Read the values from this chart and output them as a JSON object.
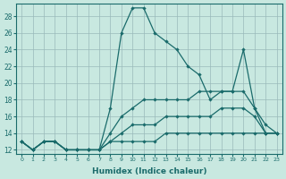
{
  "xlabel": "Humidex (Indice chaleur)",
  "xlim": [
    -0.5,
    23.5
  ],
  "ylim": [
    11.5,
    29.5
  ],
  "yticks": [
    12,
    14,
    16,
    18,
    20,
    22,
    24,
    26,
    28
  ],
  "xticks": [
    0,
    1,
    2,
    3,
    4,
    5,
    6,
    7,
    8,
    9,
    10,
    11,
    12,
    13,
    14,
    15,
    16,
    17,
    18,
    19,
    20,
    21,
    22,
    23
  ],
  "bg_color": "#c8e8e0",
  "line_color": "#1a6b6b",
  "grid_color": "#9ababa",
  "lines": [
    {
      "x": [
        0,
        1,
        2,
        3,
        4,
        5,
        6,
        7,
        8,
        9,
        10,
        11,
        12,
        13,
        14,
        15,
        16,
        17,
        18,
        19,
        20,
        21,
        22,
        23
      ],
      "y": [
        13,
        12,
        13,
        13,
        12,
        12,
        12,
        12,
        17,
        26,
        29,
        29,
        26,
        25,
        24,
        22,
        21,
        18,
        19,
        19,
        24,
        17,
        15,
        14
      ]
    },
    {
      "x": [
        0,
        1,
        2,
        3,
        4,
        5,
        6,
        7,
        8,
        9,
        10,
        11,
        12,
        13,
        14,
        15,
        16,
        17,
        18,
        19,
        20,
        21,
        22,
        23
      ],
      "y": [
        13,
        12,
        13,
        13,
        12,
        12,
        12,
        12,
        14,
        16,
        17,
        18,
        18,
        18,
        18,
        18,
        19,
        19,
        19,
        19,
        19,
        17,
        14,
        14
      ]
    },
    {
      "x": [
        0,
        1,
        2,
        3,
        4,
        5,
        6,
        7,
        8,
        9,
        10,
        11,
        12,
        13,
        14,
        15,
        16,
        17,
        18,
        19,
        20,
        21,
        22,
        23
      ],
      "y": [
        13,
        12,
        13,
        13,
        12,
        12,
        12,
        12,
        13,
        14,
        15,
        15,
        15,
        16,
        16,
        16,
        16,
        16,
        17,
        17,
        17,
        16,
        14,
        14
      ]
    },
    {
      "x": [
        0,
        1,
        2,
        3,
        4,
        5,
        6,
        7,
        8,
        9,
        10,
        11,
        12,
        13,
        14,
        15,
        16,
        17,
        18,
        19,
        20,
        21,
        22,
        23
      ],
      "y": [
        13,
        12,
        13,
        13,
        12,
        12,
        12,
        12,
        13,
        13,
        13,
        13,
        13,
        14,
        14,
        14,
        14,
        14,
        14,
        14,
        14,
        14,
        14,
        14
      ]
    }
  ]
}
